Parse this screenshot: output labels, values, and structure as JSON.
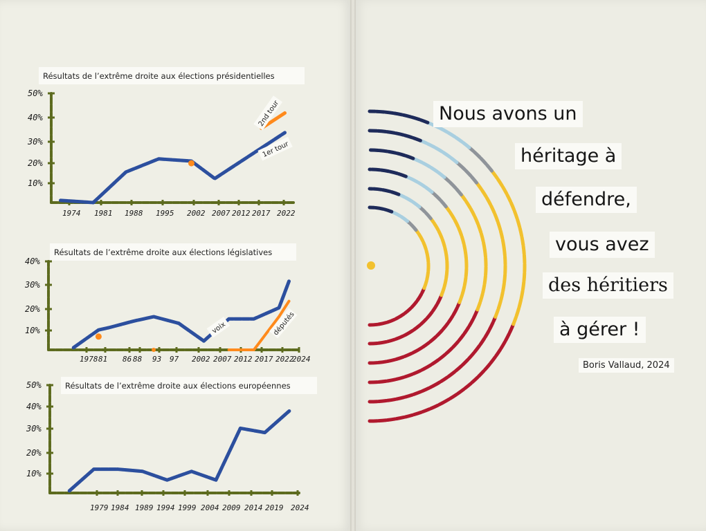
{
  "quote": {
    "lines": [
      "Nous avons un",
      "héritage à",
      "défendre,",
      "vous avez",
      "des héritiers",
      "à gérer !"
    ],
    "author": "Boris Vallaud, 2024"
  },
  "colors": {
    "navy": "#1e2b5a",
    "lightblue": "#a9cfe0",
    "grey": "#8f949a",
    "yellow": "#f2c12e",
    "red": "#b0192e",
    "axis": "#5d6b1f",
    "line_blue": "#2c4f9e",
    "orange": "#ff8a1c"
  },
  "chart_data": [
    {
      "type": "line",
      "title": "Résultats de l’extrême droite aux élections présidentielles",
      "ytick_labels": [
        "10%",
        "20%",
        "30%",
        "40%",
        "50%"
      ],
      "ylim": [
        0,
        50
      ],
      "xtick_labels": [
        "1974",
        "1981",
        "1988",
        "1995",
        "2002",
        "2007",
        "2012",
        "2017",
        "2022"
      ],
      "series": [
        {
          "name": "1er tour",
          "x": [
            1974,
            1981,
            1988,
            1995,
            2002,
            2007,
            2012,
            2017,
            2022
          ],
          "values": [
            1,
            0,
            14,
            20,
            19,
            11,
            18,
            25,
            32
          ]
        },
        {
          "name": "2nd tour",
          "x": [
            2002,
            2017,
            2022
          ],
          "values": [
            18,
            34,
            41
          ]
        }
      ]
    },
    {
      "type": "line",
      "title": "Résultats de l’extrême droite aux élections législatives",
      "ytick_labels": [
        "10%",
        "20%",
        "30%",
        "40%"
      ],
      "ylim": [
        0,
        40
      ],
      "xtick_labels": [
        "1978",
        "81",
        "86",
        "88",
        "93",
        "97",
        "2002",
        "2007",
        "2012",
        "2017",
        "2022",
        "2024"
      ],
      "series": [
        {
          "name": "voix",
          "x": [
            1981,
            1986,
            1988,
            1993,
            1997,
            2002,
            2007,
            2012,
            2017,
            2022,
            2024
          ],
          "values": [
            1,
            9,
            10,
            13,
            15,
            12,
            4,
            14,
            14,
            19,
            31
          ]
        },
        {
          "name": "députés",
          "x": [
            1986,
            1988,
            1997,
            2012,
            2017,
            2022,
            2024
          ],
          "values": [
            6,
            0,
            0,
            0,
            0,
            15,
            22
          ]
        }
      ]
    },
    {
      "type": "line",
      "title": "Résultats de l’extrême droite aux élections européennes",
      "ytick_labels": [
        "10%",
        "20%",
        "30%",
        "40%",
        "50%"
      ],
      "ylim": [
        0,
        50
      ],
      "xtick_labels": [
        "1979",
        "1984",
        "1989",
        "1994",
        "1999",
        "2004",
        "2009",
        "2014",
        "2019",
        "2024"
      ],
      "series": [
        {
          "name": "",
          "x": [
            1979,
            1984,
            1989,
            1994,
            1999,
            2004,
            2009,
            2014,
            2019,
            2024
          ],
          "values": [
            1,
            11,
            11,
            10,
            6,
            10,
            6,
            30,
            28,
            38
          ]
        }
      ]
    }
  ]
}
